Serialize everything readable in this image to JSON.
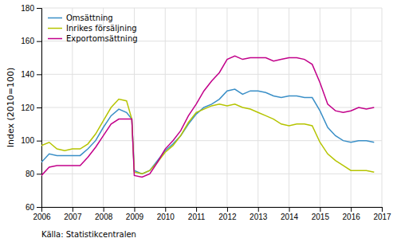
{
  "chart_data": {
    "type": "line",
    "ylabel": "Index (2010=100)",
    "source": "Källa: Statistikcentralen",
    "x": [
      2006.0,
      2006.25,
      2006.5,
      2006.75,
      2007.0,
      2007.25,
      2007.5,
      2007.75,
      2008.0,
      2008.25,
      2008.5,
      2008.75,
      2008.92,
      2009.0,
      2009.25,
      2009.5,
      2009.75,
      2010.0,
      2010.25,
      2010.5,
      2010.75,
      2011.0,
      2011.25,
      2011.5,
      2011.75,
      2012.0,
      2012.25,
      2012.5,
      2012.75,
      2013.0,
      2013.25,
      2013.5,
      2013.75,
      2014.0,
      2014.25,
      2014.5,
      2014.75,
      2015.0,
      2015.25,
      2015.5,
      2015.75,
      2016.0,
      2016.25,
      2016.5,
      2016.75
    ],
    "series": [
      {
        "name": "Omsättning",
        "color": "#3a8fc7",
        "values": [
          87,
          92,
          91,
          91,
          91,
          91,
          95,
          100,
          108,
          115,
          119,
          117,
          113,
          82,
          80,
          82,
          88,
          94,
          98,
          103,
          110,
          116,
          120,
          122,
          125,
          130,
          131,
          128,
          130,
          130,
          129,
          127,
          126,
          127,
          127,
          126,
          126,
          118,
          108,
          103,
          100,
          99,
          100,
          100,
          99
        ]
      },
      {
        "name": "Inrikes försäljning",
        "color": "#b5c400",
        "values": [
          97,
          99,
          95,
          94,
          95,
          95,
          98,
          104,
          112,
          120,
          125,
          124,
          113,
          81,
          80,
          82,
          87,
          93,
          97,
          103,
          111,
          117,
          119,
          121,
          122,
          121,
          122,
          120,
          119,
          117,
          115,
          113,
          110,
          109,
          110,
          110,
          109,
          99,
          92,
          88,
          85,
          82,
          82,
          82,
          81
        ]
      },
      {
        "name": "Exportomsättning",
        "color": "#c2008a",
        "values": [
          79,
          84,
          85,
          85,
          85,
          85,
          90,
          96,
          103,
          110,
          113,
          113,
          113,
          79,
          78,
          80,
          87,
          95,
          100,
          106,
          115,
          122,
          130,
          136,
          141,
          149,
          151,
          149,
          150,
          150,
          150,
          148,
          149,
          150,
          150,
          149,
          146,
          135,
          122,
          118,
          117,
          118,
          120,
          119,
          120
        ]
      }
    ],
    "xlim": [
      2006.0,
      2017.0
    ],
    "xticks": [
      2006,
      2007,
      2008,
      2009,
      2010,
      2011,
      2012,
      2013,
      2014,
      2015,
      2016,
      2017
    ],
    "ylim": [
      60,
      180
    ],
    "yticks": [
      60,
      80,
      100,
      120,
      140,
      160,
      180
    ],
    "grid": true,
    "legend": "upper left"
  }
}
